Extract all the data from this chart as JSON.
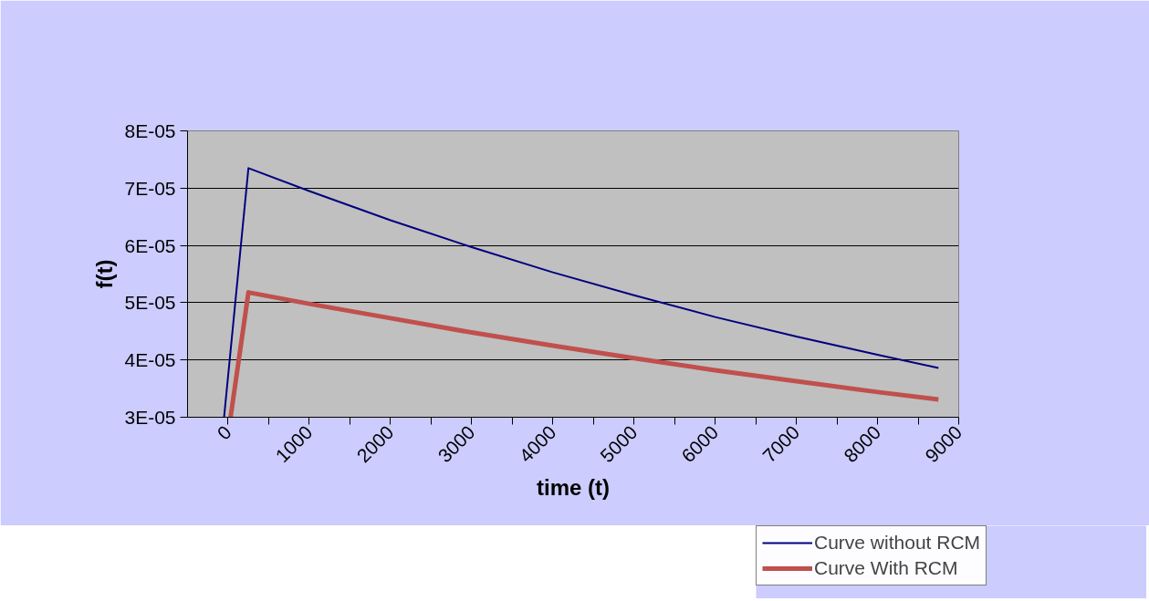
{
  "chart_data": {
    "type": "line",
    "xlabel": "time (t)",
    "ylabel": "f(t)",
    "xlim": [
      -500,
      9000
    ],
    "xticks": [
      0,
      {
        "value": 500,
        "label": null
      },
      1000,
      {
        "value": 1500,
        "label": null
      },
      2000,
      {
        "value": 2500,
        "label": null
      },
      3000,
      {
        "value": 3500,
        "label": null
      },
      4000,
      {
        "value": 4500,
        "label": null
      },
      5000,
      {
        "value": 5500,
        "label": null
      },
      6000,
      {
        "value": 6500,
        "label": null
      },
      7000,
      {
        "value": 7500,
        "label": null
      },
      8000,
      {
        "value": 8500,
        "label": null
      },
      9000
    ],
    "ylim": [
      3e-05,
      8e-05
    ],
    "yticks": [
      {
        "value": 3e-05,
        "label": "3E-05"
      },
      {
        "value": 4e-05,
        "label": "4E-05"
      },
      {
        "value": 5e-05,
        "label": "5E-05"
      },
      {
        "value": 6e-05,
        "label": "6E-05"
      },
      {
        "value": 7e-05,
        "label": "7E-05"
      },
      {
        "value": 8e-05,
        "label": "8E-05"
      }
    ],
    "grid": "y",
    "legend": "bottom right",
    "marker": "none",
    "line_style": "solid",
    "series": [
      {
        "name": "Curve without RCM",
        "color": "#000080",
        "x": [
          -50,
          250,
          1000,
          2000,
          3000,
          4000,
          5000,
          6000,
          7000,
          8000,
          8750
        ],
        "values": [
          3e-05,
          7.35e-05,
          6.95e-05,
          6.44e-05,
          5.97e-05,
          5.53e-05,
          5.13e-05,
          4.75e-05,
          4.41e-05,
          4.09e-05,
          3.86e-05
        ]
      },
      {
        "name": "Curve With RCM",
        "color": "#c0504d",
        "x": [
          30,
          250,
          1000,
          2000,
          3000,
          4000,
          5000,
          6000,
          7000,
          8000,
          8750
        ],
        "values": [
          3e-05,
          5.18e-05,
          4.98e-05,
          4.73e-05,
          4.48e-05,
          4.25e-05,
          4.03e-05,
          3.82e-05,
          3.63e-05,
          3.44e-05,
          3.31e-05
        ]
      }
    ]
  }
}
